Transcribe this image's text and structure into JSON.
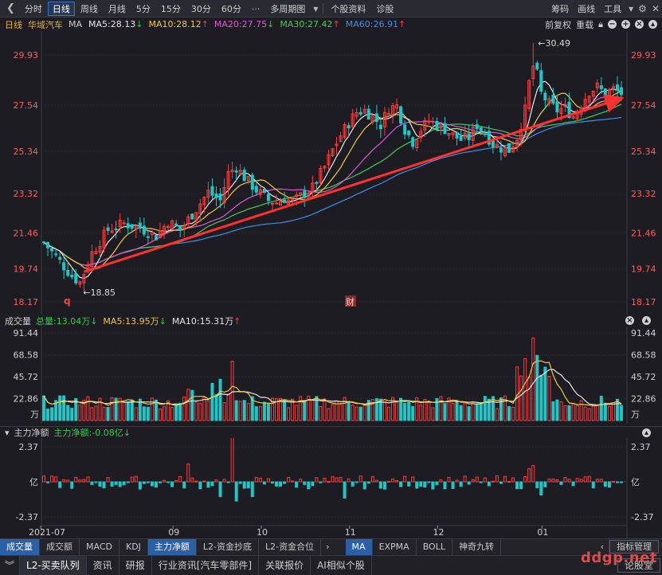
{
  "toolbar": {
    "periods": [
      "分时",
      "日线",
      "周线",
      "月线",
      "5分",
      "15分",
      "30分",
      "60分",
      "···",
      "多周期图",
      "个股资料",
      "诊股"
    ],
    "active_period": "日线",
    "right": [
      "筹码",
      "画线",
      "工具"
    ],
    "right_icons": [
      "settings-icon",
      "close-icon"
    ]
  },
  "ma_bar": {
    "period": "日线",
    "stock": "华域汽车",
    "label": "MA",
    "items": [
      {
        "text": "MA5:28.13",
        "arrow": "↓",
        "color": "#e8e8e8",
        "arrow_color": "#2fcc4a"
      },
      {
        "text": "MA10:28.12",
        "arrow": "↑",
        "color": "#f0c83a",
        "arrow_color": "#ff3b3b"
      },
      {
        "text": "MA20:27.75",
        "arrow": "↓",
        "color": "#e055d6",
        "arrow_color": "#2fcc4a"
      },
      {
        "text": "MA30:27.42",
        "arrow": "↑",
        "color": "#3fcc55",
        "arrow_color": "#ff3b3b"
      },
      {
        "text": "MA60:26.91",
        "arrow": "↑",
        "color": "#3d8fe8",
        "arrow_color": "#ff3b3b"
      }
    ],
    "right": [
      "前复权",
      "重载"
    ]
  },
  "price_axis": {
    "ticks": [
      "29.93",
      "27.54",
      "25.34",
      "23.32",
      "21.46",
      "19.74",
      "18.17"
    ],
    "high_label": "30.49",
    "low_label": "18.85",
    "marker_q": "q",
    "marker_cai": "财"
  },
  "volume_panel": {
    "label": "成交量",
    "items": [
      {
        "text": "总量:13.04万",
        "arrow": "↓",
        "color": "#2fcc4a",
        "arrow_color": "#2fcc4a"
      },
      {
        "text": "MA5:13.95万",
        "arrow": "↓",
        "color": "#f0c83a",
        "arrow_color": "#2fcc4a"
      },
      {
        "text": "MA10:15.31万",
        "arrow": "↑",
        "color": "#e8e8e8",
        "arrow_color": "#ff3b3b"
      }
    ],
    "ticks": [
      "91.44",
      "68.58",
      "45.72",
      "22.86"
    ],
    "unit": "万"
  },
  "flow_panel": {
    "label": "主力净额",
    "items": [
      {
        "text": "主力净额:-0.08亿",
        "arrow": "↓",
        "color": "#2fcc4a",
        "arrow_color": "#2fcc4a"
      }
    ],
    "ticks": [
      "2.37",
      "亿",
      "-2.37"
    ]
  },
  "date_axis": [
    "2021-07",
    "09",
    "10",
    "11",
    "12",
    "01"
  ],
  "indicator_tabs": [
    "成交量",
    "成交额",
    "MACD",
    "KDJ",
    "主力净额",
    "L2-资金抄底",
    "L2-资金合位",
    "›",
    "MA",
    "EXPMA",
    "BOLL",
    "神奇九转",
    "‹",
    "指标管理"
  ],
  "indicator_active": [
    "成交量",
    "主力净额",
    "MA"
  ],
  "bottom_tabs": [
    "L2-买卖队列",
    "资讯",
    "研报",
    "行业资讯[汽车零部件]",
    "关联报价",
    "AI相似个股",
    "论股堂"
  ],
  "watermark": "ddgp.net",
  "colors": {
    "up": "#ff3b3b",
    "down": "#1fc7c7",
    "ma5": "#e8e8e8",
    "ma10": "#f0c83a",
    "ma20": "#e055d6",
    "ma30": "#3fcc55",
    "ma60": "#3d8fe8",
    "trendline": "#ff3030",
    "axis_red": "#ff5a5a"
  }
}
